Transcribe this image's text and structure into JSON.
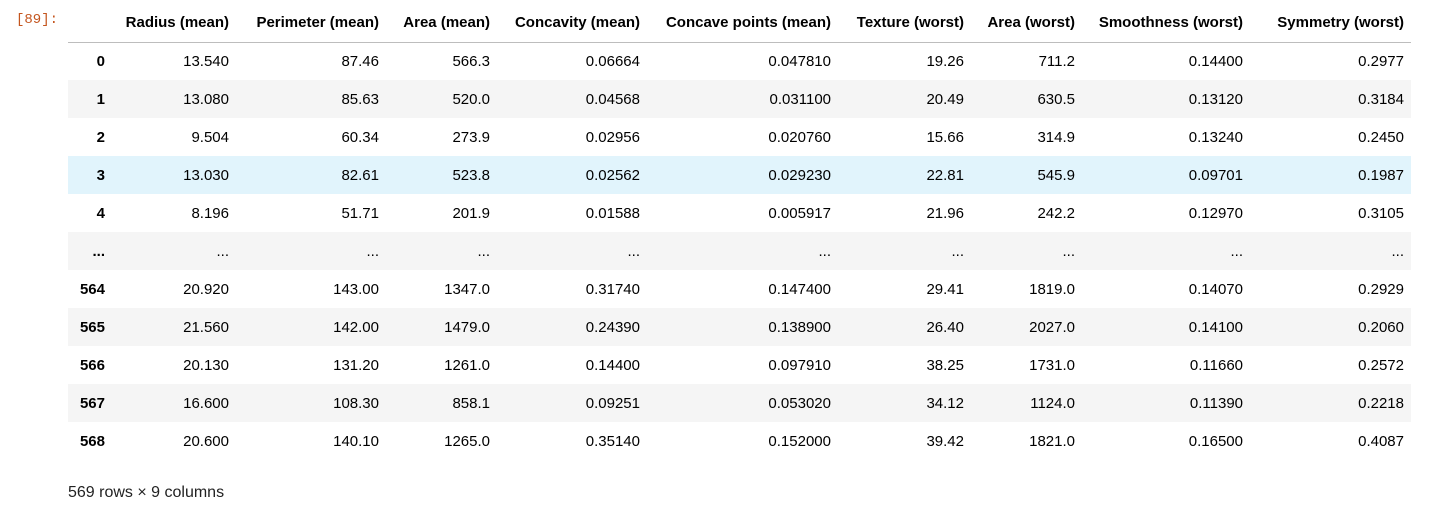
{
  "cell": {
    "prompt": "[89]:"
  },
  "table": {
    "columns": [
      "Radius (mean)",
      "Perimeter (mean)",
      "Area (mean)",
      "Concavity (mean)",
      "Concave points (mean)",
      "Texture (worst)",
      "Area (worst)",
      "Smoothness (worst)",
      "Symmetry (worst)"
    ],
    "rows": [
      {
        "index": "0",
        "cells": [
          "13.540",
          "87.46",
          "566.3",
          "0.06664",
          "0.047810",
          "19.26",
          "711.2",
          "0.14400",
          "0.2977"
        ]
      },
      {
        "index": "1",
        "cells": [
          "13.080",
          "85.63",
          "520.0",
          "0.04568",
          "0.031100",
          "20.49",
          "630.5",
          "0.13120",
          "0.3184"
        ]
      },
      {
        "index": "2",
        "cells": [
          "9.504",
          "60.34",
          "273.9",
          "0.02956",
          "0.020760",
          "15.66",
          "314.9",
          "0.13240",
          "0.2450"
        ]
      },
      {
        "index": "3",
        "cells": [
          "13.030",
          "82.61",
          "523.8",
          "0.02562",
          "0.029230",
          "22.81",
          "545.9",
          "0.09701",
          "0.1987"
        ]
      },
      {
        "index": "4",
        "cells": [
          "8.196",
          "51.71",
          "201.9",
          "0.01588",
          "0.005917",
          "21.96",
          "242.2",
          "0.12970",
          "0.3105"
        ]
      },
      {
        "index": "...",
        "cells": [
          "...",
          "...",
          "...",
          "...",
          "...",
          "...",
          "...",
          "...",
          "..."
        ]
      },
      {
        "index": "564",
        "cells": [
          "20.920",
          "143.00",
          "1347.0",
          "0.31740",
          "0.147400",
          "29.41",
          "1819.0",
          "0.14070",
          "0.2929"
        ]
      },
      {
        "index": "565",
        "cells": [
          "21.560",
          "142.00",
          "1479.0",
          "0.24390",
          "0.138900",
          "26.40",
          "2027.0",
          "0.14100",
          "0.2060"
        ]
      },
      {
        "index": "566",
        "cells": [
          "20.130",
          "131.20",
          "1261.0",
          "0.14400",
          "0.097910",
          "38.25",
          "1731.0",
          "0.11660",
          "0.2572"
        ]
      },
      {
        "index": "567",
        "cells": [
          "16.600",
          "108.30",
          "858.1",
          "0.09251",
          "0.053020",
          "34.12",
          "1124.0",
          "0.11390",
          "0.2218"
        ]
      },
      {
        "index": "568",
        "cells": [
          "20.600",
          "140.10",
          "1265.0",
          "0.35140",
          "0.152000",
          "39.42",
          "1821.0",
          "0.16500",
          "0.4087"
        ]
      }
    ]
  },
  "summary": "569 rows × 9 columns"
}
